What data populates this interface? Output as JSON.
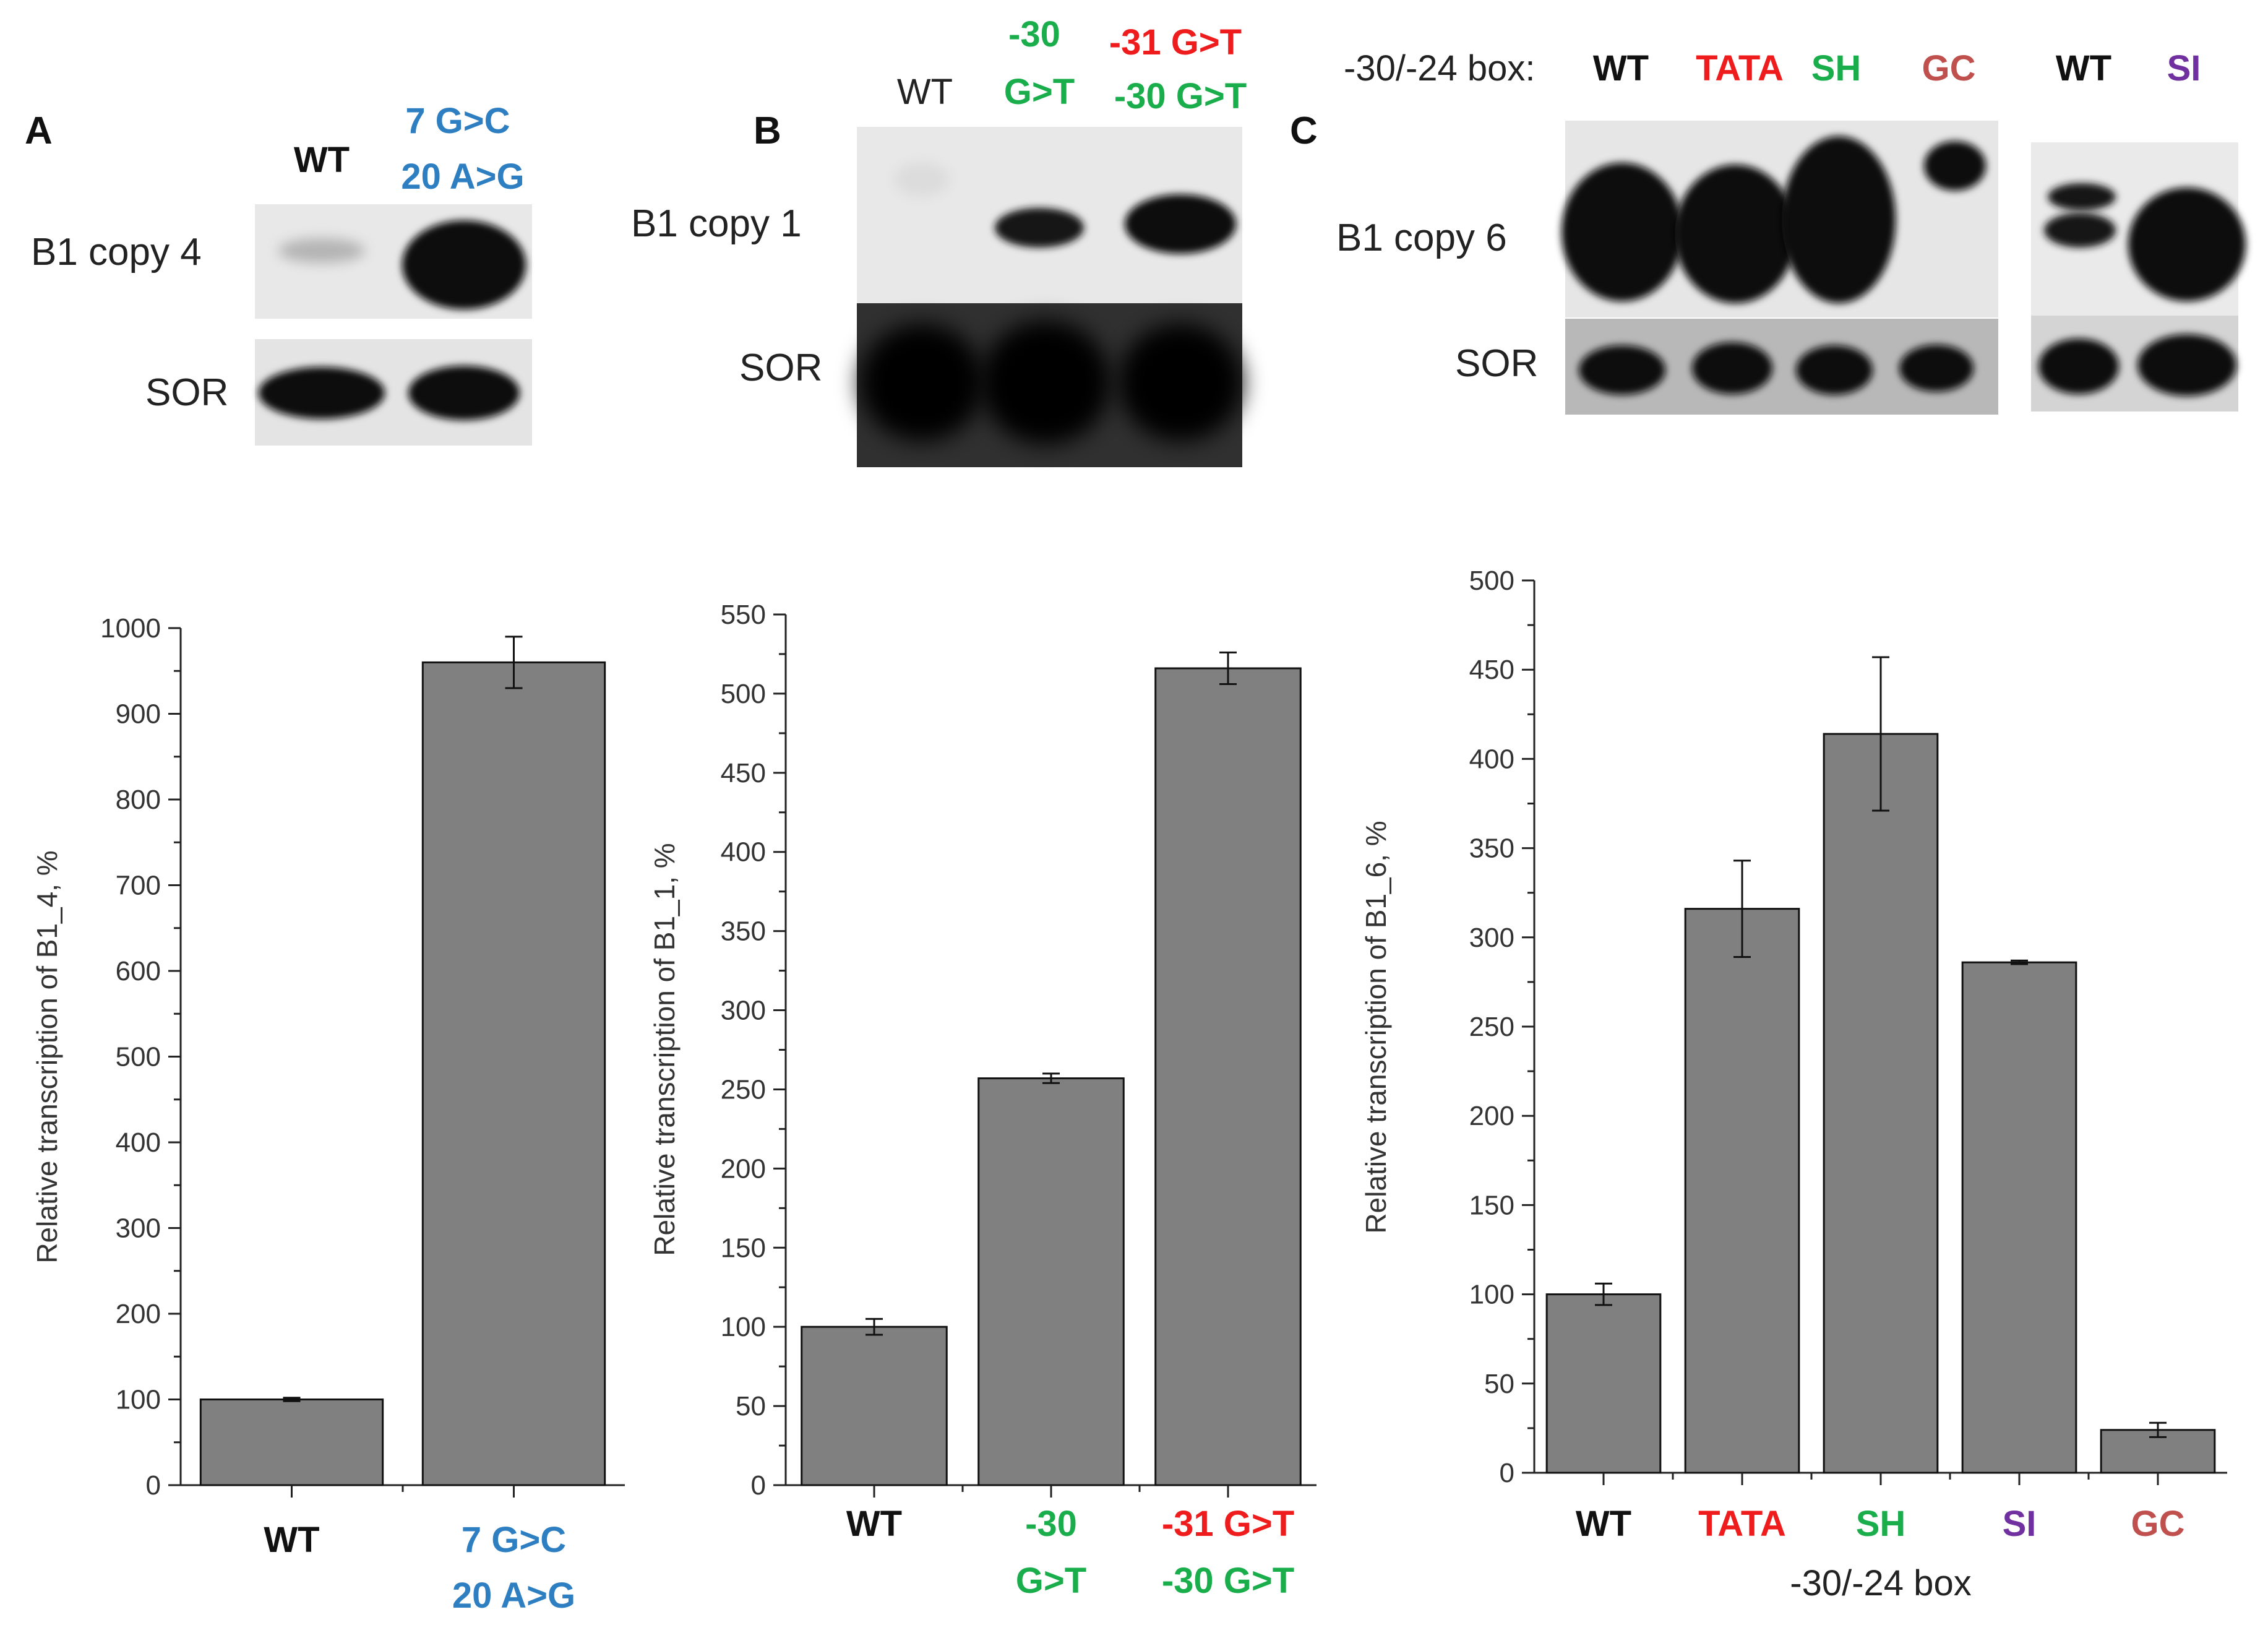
{
  "panels": {
    "A": {
      "letter": "A",
      "blot": {
        "lane_labels": [
          {
            "lines": [
              "WT"
            ],
            "colors": [
              "#111111"
            ]
          },
          {
            "lines": [
              "7 G>C",
              "20 A>G"
            ],
            "colors": [
              "#2e7fc1",
              "#2e7fc1"
            ]
          }
        ],
        "row_labels": [
          "B1 copy 4",
          "SOR"
        ]
      }
    },
    "B": {
      "letter": "B",
      "blot": {
        "lane_labels": [
          {
            "lines": [
              "WT"
            ],
            "colors": [
              "#222222"
            ]
          },
          {
            "lines": [
              "-30",
              "G>T"
            ],
            "colors": [
              "#1aad4b",
              "#1aad4b"
            ]
          },
          {
            "lines": [
              "-31 G>T",
              "-30 G>T"
            ],
            "colors": [
              "#ee1c1c",
              "#1aad4b"
            ]
          }
        ],
        "row_labels": [
          "B1 copy 1",
          "SOR"
        ]
      }
    },
    "C": {
      "letter": "C",
      "blot": {
        "header_prefix": "-30/-24 box:",
        "lane_labels": [
          {
            "lines": [
              "WT"
            ],
            "colors": [
              "#111111"
            ]
          },
          {
            "lines": [
              "TATA"
            ],
            "colors": [
              "#ee1c1c"
            ]
          },
          {
            "lines": [
              "SH"
            ],
            "colors": [
              "#1aad4b"
            ]
          },
          {
            "lines": [
              "GC"
            ],
            "colors": [
              "#c0504d"
            ]
          },
          {
            "lines": [
              "WT"
            ],
            "colors": [
              "#111111"
            ]
          },
          {
            "lines": [
              "SI"
            ],
            "colors": [
              "#7030a0"
            ]
          }
        ],
        "row_labels": [
          "B1 copy 6",
          "SOR"
        ]
      }
    }
  },
  "chart_data": [
    {
      "type": "bar",
      "panel": "A",
      "ylabel": "Relative  transcription of B1_4, %",
      "xlabel": "",
      "ylim": [
        0,
        1000
      ],
      "yticks": [
        0,
        100,
        200,
        300,
        400,
        500,
        600,
        700,
        800,
        900,
        1000
      ],
      "categories": [
        {
          "lines": [
            "WT"
          ],
          "colors": [
            "#111111"
          ]
        },
        {
          "lines": [
            "7 G>C",
            "20 A>G"
          ],
          "colors": [
            "#2e7fc1",
            "#2e7fc1"
          ]
        }
      ],
      "values": [
        100,
        960
      ],
      "errors": [
        2,
        30
      ],
      "bar_color": "#808080"
    },
    {
      "type": "bar",
      "panel": "B",
      "ylabel": "Relative  transcription of B1_1, %",
      "xlabel": "",
      "ylim": [
        0,
        550
      ],
      "yticks": [
        0,
        50,
        100,
        150,
        200,
        250,
        300,
        350,
        400,
        450,
        500,
        550
      ],
      "categories": [
        {
          "lines": [
            "WT"
          ],
          "colors": [
            "#111111"
          ]
        },
        {
          "lines": [
            "-30",
            "G>T"
          ],
          "colors": [
            "#1aad4b",
            "#1aad4b"
          ]
        },
        {
          "lines": [
            "-31 G>T",
            "-30 G>T"
          ],
          "colors": [
            "#ee1c1c",
            "#1aad4b"
          ]
        }
      ],
      "values": [
        100,
        257,
        516
      ],
      "errors": [
        5,
        3,
        10
      ],
      "bar_color": "#808080"
    },
    {
      "type": "bar",
      "panel": "C",
      "ylabel": "Relative  transcription of B1_6, %",
      "xlabel": "-30/-24 box",
      "ylim": [
        0,
        500
      ],
      "yticks": [
        0,
        50,
        100,
        150,
        200,
        250,
        300,
        350,
        400,
        450,
        500
      ],
      "categories": [
        {
          "lines": [
            "WT"
          ],
          "colors": [
            "#111111"
          ]
        },
        {
          "lines": [
            "TATA"
          ],
          "colors": [
            "#ee1c1c"
          ]
        },
        {
          "lines": [
            "SH"
          ],
          "colors": [
            "#1aad4b"
          ]
        },
        {
          "lines": [
            "SI"
          ],
          "colors": [
            "#7030a0"
          ]
        },
        {
          "lines": [
            "GC"
          ],
          "colors": [
            "#c0504d"
          ]
        }
      ],
      "values": [
        100,
        316,
        414,
        286,
        24
      ],
      "errors": [
        6,
        27,
        43,
        1,
        4
      ],
      "bar_color": "#808080"
    }
  ]
}
